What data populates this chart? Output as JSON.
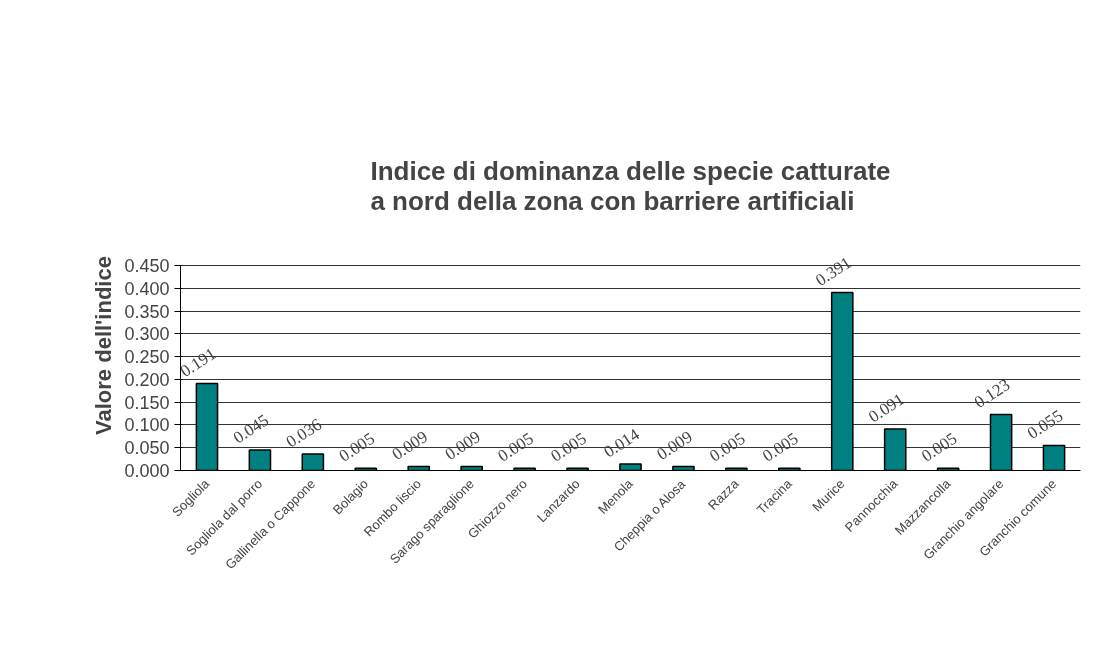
{
  "chart_data": {
    "type": "bar",
    "title": "Indice di dominanza delle specie catturate\na nord della zona con barriere artificiali",
    "ylabel": "Valore dell'indice",
    "categories": [
      "Sogliola",
      "Sogliola dal porro",
      "Gallinella o Cappone",
      "Bolagio",
      "Rombo liscio",
      "Sarago sparaglione",
      "Ghiozzo nero",
      "Lanzardo",
      "Menola",
      "Cheppia o Alosa",
      "Razza",
      "Tracina",
      "Murice",
      "Pannocchia",
      "Mazzancolla",
      "Granchio angolare",
      "Granchio comune"
    ],
    "values": [
      0.191,
      0.045,
      0.036,
      0.005,
      0.009,
      0.009,
      0.005,
      0.005,
      0.014,
      0.009,
      0.005,
      0.005,
      0.391,
      0.091,
      0.005,
      0.123,
      0.055
    ],
    "color": "#008080",
    "data_labels": true,
    "grid": "y",
    "ylim": [
      0,
      0.45
    ],
    "yticks": [
      {
        "value": 0,
        "label": "0.000"
      },
      {
        "value": 0.05,
        "label": "0.050"
      },
      {
        "value": 0.1,
        "label": "0.100"
      },
      {
        "value": 0.15,
        "label": "0.150"
      },
      {
        "value": 0.2,
        "label": "0.200"
      },
      {
        "value": 0.25,
        "label": "0.250"
      },
      {
        "value": 0.3,
        "label": "0.300"
      },
      {
        "value": 0.35,
        "label": "0.350"
      },
      {
        "value": 0.4,
        "label": "0.400"
      },
      {
        "value": 0.45,
        "label": "0.450"
      }
    ]
  }
}
